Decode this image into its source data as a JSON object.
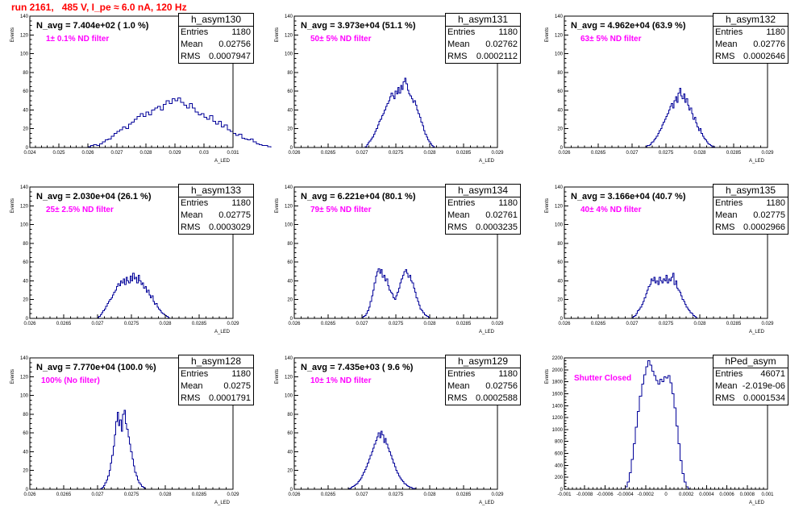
{
  "header": {
    "run_title": "run 2161,   485 V, I_pe ≈ 6.0 nA, 120 Hz"
  },
  "stat_labels": {
    "entries": "Entries",
    "mean": "Mean",
    "rms": "RMS"
  },
  "chart_data": [
    {
      "type": "bar",
      "name": "h_asym130",
      "title": "N_avg = 7.404e+02 ( 1.0 %)",
      "annotation": "1± 0.1% ND filter",
      "ylabel": "Events",
      "xlabel": "A_LED",
      "xlim": [
        0.024,
        0.031
      ],
      "ylim": [
        0,
        140
      ],
      "xticks": [
        "0.024",
        "0.025",
        "0.026",
        "0.027",
        "0.028",
        "0.029",
        "0.03",
        "0.031"
      ],
      "yticks": [
        "0",
        "20",
        "40",
        "60",
        "80",
        "100",
        "120",
        "140"
      ],
      "stats": {
        "entries": "1180",
        "mean": "0.02756",
        "rms": "0.0007947"
      },
      "bins": {
        "start": 0.026,
        "step": 0.0001,
        "values": [
          1,
          2,
          3,
          2,
          4,
          6,
          8,
          9,
          12,
          15,
          17,
          19,
          22,
          20,
          25,
          27,
          30,
          33,
          36,
          33,
          38,
          35,
          40,
          42,
          44,
          40,
          46,
          50,
          47,
          52,
          50,
          53,
          48,
          45,
          42,
          47,
          42,
          38,
          35,
          36,
          32,
          30,
          34,
          28,
          25,
          28,
          22,
          24,
          19,
          17,
          15,
          13,
          14,
          10,
          9,
          8,
          9,
          6,
          4,
          3,
          2,
          2,
          1
        ]
      }
    },
    {
      "type": "bar",
      "name": "h_asym131",
      "title": "N_avg = 3.973e+04 (51.1 %)",
      "annotation": "50± 5% ND filter",
      "ylabel": "Events",
      "xlabel": "A_LED",
      "xlim": [
        0.026,
        0.029
      ],
      "ylim": [
        0,
        140
      ],
      "xticks": [
        "0.026",
        "0.0265",
        "0.027",
        "0.0275",
        "0.028",
        "0.0285",
        "0.029"
      ],
      "yticks": [
        "0",
        "20",
        "40",
        "60",
        "80",
        "100",
        "120",
        "140"
      ],
      "stats": {
        "entries": "1180",
        "mean": "0.02762",
        "rms": "0.0002112"
      },
      "bins": {
        "start": 0.02705,
        "step": 2e-05,
        "values": [
          1,
          3,
          5,
          7,
          9,
          11,
          14,
          17,
          20,
          24,
          28,
          30,
          34,
          36,
          40,
          44,
          47,
          50,
          54,
          58,
          55,
          52,
          60,
          57,
          64,
          58,
          66,
          62,
          70,
          74,
          68,
          61,
          57,
          55,
          52,
          48,
          50,
          45,
          40,
          36,
          32,
          27,
          23,
          18,
          14,
          11,
          8,
          6,
          4,
          2,
          1
        ]
      }
    },
    {
      "type": "bar",
      "name": "h_asym132",
      "title": "N_avg = 4.962e+04 (63.9 %)",
      "annotation": "63± 5% ND filter",
      "ylabel": "Events",
      "xlabel": "A_LED",
      "xlim": [
        0.026,
        0.029
      ],
      "ylim": [
        0,
        140
      ],
      "xticks": [
        "0.026",
        "0.0265",
        "0.027",
        "0.0275",
        "0.028",
        "0.0285",
        "0.029"
      ],
      "yticks": [
        "0",
        "20",
        "40",
        "60",
        "80",
        "100",
        "120",
        "140"
      ],
      "stats": {
        "entries": "1180",
        "mean": "0.02776",
        "rms": "0.0002646"
      },
      "bins": {
        "start": 0.0272,
        "step": 2e-05,
        "values": [
          1,
          2,
          2,
          3,
          5,
          6,
          8,
          10,
          12,
          15,
          18,
          20,
          24,
          27,
          30,
          33,
          36,
          40,
          44,
          47,
          42,
          50,
          54,
          48,
          58,
          63,
          55,
          52,
          57,
          48,
          52,
          45,
          40,
          42,
          36,
          30,
          32,
          26,
          22,
          18,
          20,
          15,
          12,
          10,
          8,
          6,
          4,
          3,
          2,
          1,
          1
        ]
      }
    },
    {
      "type": "bar",
      "name": "h_asym133",
      "title": "N_avg = 2.030e+04 (26.1 %)",
      "annotation": "25± 2.5% ND filter",
      "ylabel": "Events",
      "xlabel": "A_LED",
      "xlim": [
        0.026,
        0.029
      ],
      "ylim": [
        0,
        140
      ],
      "xticks": [
        "0.026",
        "0.0265",
        "0.027",
        "0.0275",
        "0.028",
        "0.0285",
        "0.029"
      ],
      "yticks": [
        "0",
        "20",
        "40",
        "60",
        "80",
        "100",
        "120",
        "140"
      ],
      "stats": {
        "entries": "1180",
        "mean": "0.02775",
        "rms": "0.0003029"
      },
      "bins": {
        "start": 0.027,
        "step": 2e-05,
        "values": [
          1,
          2,
          4,
          6,
          8,
          10,
          13,
          16,
          18,
          20,
          22,
          25,
          28,
          30,
          34,
          37,
          35,
          40,
          38,
          42,
          36,
          44,
          40,
          38,
          45,
          40,
          48,
          42,
          44,
          38,
          46,
          40,
          36,
          38,
          32,
          34,
          28,
          30,
          25,
          22,
          24,
          18,
          15,
          16,
          12,
          10,
          8,
          6,
          5,
          4,
          3,
          2,
          1
        ]
      }
    },
    {
      "type": "bar",
      "name": "h_asym134",
      "title": "N_avg = 6.221e+04 (80.1 %)",
      "annotation": "79± 5% ND filter",
      "ylabel": "Events",
      "xlabel": "A_LED",
      "xlim": [
        0.026,
        0.029
      ],
      "ylim": [
        0,
        140
      ],
      "xticks": [
        "0.026",
        "0.0265",
        "0.027",
        "0.0275",
        "0.028",
        "0.0285",
        "0.029"
      ],
      "yticks": [
        "0",
        "20",
        "40",
        "60",
        "80",
        "100",
        "120",
        "140"
      ],
      "stats": {
        "entries": "1180",
        "mean": "0.02761",
        "rms": "0.0003235"
      },
      "bins": {
        "start": 0.027,
        "step": 2e-05,
        "values": [
          1,
          2,
          3,
          5,
          8,
          12,
          18,
          24,
          30,
          38,
          45,
          50,
          53,
          48,
          52,
          44,
          46,
          40,
          42,
          35,
          30,
          28,
          26,
          22,
          20,
          24,
          28,
          32,
          38,
          42,
          46,
          50,
          52,
          48,
          44,
          46,
          40,
          38,
          32,
          28,
          22,
          18,
          14,
          10,
          8,
          6,
          4,
          3,
          2,
          1
        ]
      }
    },
    {
      "type": "bar",
      "name": "h_asym135",
      "title": "N_avg = 3.166e+04 (40.7 %)",
      "annotation": "40± 4% ND filter",
      "ylabel": "Events",
      "xlabel": "A_LED",
      "xlim": [
        0.026,
        0.029
      ],
      "ylim": [
        0,
        140
      ],
      "xticks": [
        "0.026",
        "0.0265",
        "0.027",
        "0.0275",
        "0.028",
        "0.0285",
        "0.029"
      ],
      "yticks": [
        "0",
        "20",
        "40",
        "60",
        "80",
        "100",
        "120",
        "140"
      ],
      "stats": {
        "entries": "1180",
        "mean": "0.02775",
        "rms": "0.0002966"
      },
      "bins": {
        "start": 0.027,
        "step": 2e-05,
        "values": [
          1,
          2,
          3,
          5,
          8,
          10,
          12,
          15,
          18,
          22,
          26,
          30,
          34,
          36,
          42,
          40,
          44,
          38,
          40,
          36,
          44,
          40,
          38,
          42,
          40,
          46,
          38,
          42,
          40,
          44,
          48,
          36,
          40,
          32,
          30,
          28,
          24,
          20,
          18,
          15,
          12,
          10,
          8,
          6,
          5,
          3,
          2,
          1
        ]
      }
    },
    {
      "type": "bar",
      "name": "h_asym128",
      "title": "N_avg = 7.770e+04 (100.0 %)",
      "annotation": "100% (No filter)",
      "ylabel": "Events",
      "xlabel": "A_LED",
      "xlim": [
        0.026,
        0.029
      ],
      "ylim": [
        0,
        140
      ],
      "xticks": [
        "0.026",
        "0.0265",
        "0.027",
        "0.0275",
        "0.028",
        "0.0285",
        "0.029"
      ],
      "yticks": [
        "0",
        "20",
        "40",
        "60",
        "80",
        "100",
        "120",
        "140"
      ],
      "stats": {
        "entries": "1180",
        "mean": "0.0275",
        "rms": "0.0001791"
      },
      "bins": {
        "start": 0.02705,
        "step": 2e-05,
        "values": [
          1,
          2,
          4,
          7,
          10,
          14,
          20,
          28,
          36,
          46,
          58,
          72,
          82,
          68,
          74,
          62,
          80,
          84,
          70,
          64,
          56,
          48,
          40,
          32,
          25,
          18,
          14,
          10,
          7,
          5,
          3,
          2,
          1
        ]
      }
    },
    {
      "type": "bar",
      "name": "h_asym129",
      "title": "N_avg = 7.435e+03 ( 9.6 %)",
      "annotation": "10± 1% ND filter",
      "ylabel": "Events",
      "xlabel": "A_LED",
      "xlim": [
        0.026,
        0.029
      ],
      "ylim": [
        0,
        140
      ],
      "xticks": [
        "0.026",
        "0.0265",
        "0.027",
        "0.0275",
        "0.028",
        "0.0285",
        "0.029"
      ],
      "yticks": [
        "0",
        "20",
        "40",
        "60",
        "80",
        "100",
        "120",
        "140"
      ],
      "stats": {
        "entries": "1180",
        "mean": "0.02756",
        "rms": "0.0002588"
      },
      "bins": {
        "start": 0.0268,
        "step": 2e-05,
        "values": [
          1,
          1,
          2,
          3,
          4,
          5,
          6,
          8,
          10,
          12,
          15,
          18,
          21,
          24,
          28,
          32,
          36,
          40,
          44,
          48,
          52,
          56,
          60,
          55,
          62,
          58,
          50,
          54,
          48,
          44,
          40,
          36,
          32,
          28,
          24,
          20,
          17,
          14,
          12,
          10,
          8,
          6,
          5,
          4,
          3,
          2,
          2,
          1,
          1,
          1
        ]
      }
    },
    {
      "type": "bar",
      "name": "hPed_asym",
      "title": "",
      "annotation": "Shutter Closed",
      "ylabel": "Events",
      "xlabel": "A_LED",
      "xlim": [
        -0.001,
        0.001
      ],
      "ylim": [
        0,
        2200
      ],
      "xticks": [
        "-0.001",
        "-0.0008",
        "-0.0006",
        "-0.0004",
        "-0.0002",
        "0",
        "0.0002",
        "0.0004",
        "0.0006",
        "0.0008",
        "0.001"
      ],
      "yticks": [
        "0",
        "200",
        "400",
        "600",
        "800",
        "1000",
        "1200",
        "1400",
        "1600",
        "1800",
        "2000",
        "2200"
      ],
      "stats": {
        "entries": "46071",
        "mean": "-2.019e-06",
        "rms": "0.0001534"
      },
      "bins": {
        "start": -0.00042,
        "step": 2e-05,
        "values": [
          10,
          40,
          120,
          280,
          500,
          760,
          1040,
          1300,
          1560,
          1760,
          1920,
          2050,
          2150,
          2080,
          1980,
          1900,
          1820,
          1760,
          1840,
          1800,
          1880,
          1860,
          1900,
          1780,
          1600,
          1360,
          1060,
          760,
          480,
          260,
          120,
          40,
          10
        ]
      }
    }
  ]
}
